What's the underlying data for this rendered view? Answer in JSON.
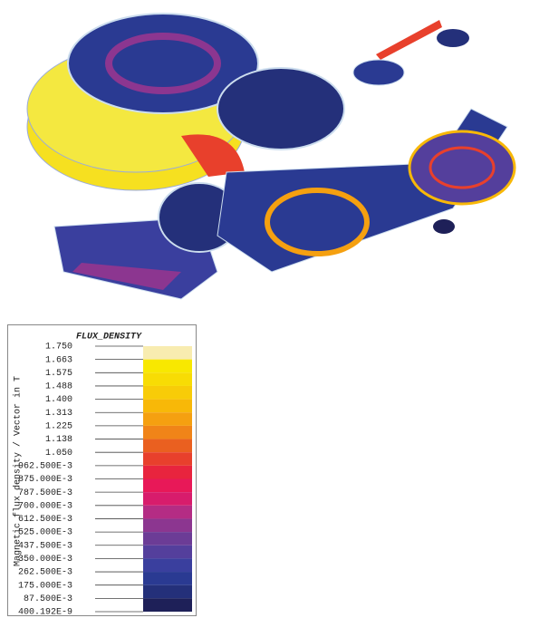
{
  "legend": {
    "title": "FLUX_DENSITY",
    "axis_label": "Magnetic flux density / Vector in T",
    "ticks": [
      "1.750",
      "1.663",
      "1.575",
      "1.488",
      "1.400",
      "1.313",
      "1.225",
      "1.138",
      "1.050",
      "962.500E-3",
      "875.000E-3",
      "787.500E-3",
      "700.000E-3",
      "612.500E-3",
      "525.000E-3",
      "437.500E-3",
      "350.000E-3",
      "262.500E-3",
      "175.000E-3",
      "87.500E-3",
      "400.192E-9"
    ],
    "colors": [
      "#f8ecb0",
      "#f8e800",
      "#f8dc04",
      "#f8cc08",
      "#f8b808",
      "#f5a010",
      "#f08418",
      "#ea6020",
      "#e8402c",
      "#e8243e",
      "#e81858",
      "#d81c6c",
      "#b42c84",
      "#8c3690",
      "#6c3c96",
      "#543f9c",
      "#3a3f9e",
      "#2a3a92",
      "#24307a",
      "#1e2058"
    ]
  }
}
